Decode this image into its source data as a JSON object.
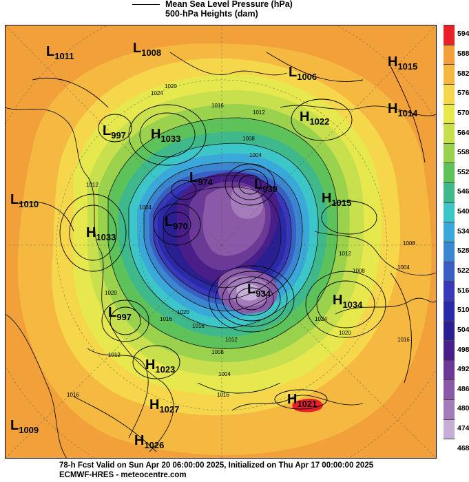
{
  "header": {
    "line1": "Mean Sea Level Pressure (hPa)",
    "line2": "500-hPa Heights (dam)"
  },
  "footer": {
    "line1": "78-h Fcst Valid on Sun Apr 20 06:00:00 2025, Initialized on Thu Apr 17 00:00:00 2025",
    "line2": "ECMWF-HRES - meteocentre.com"
  },
  "colorbar": {
    "labels": [
      "594",
      "588",
      "582",
      "576",
      "570",
      "564",
      "558",
      "552",
      "546",
      "540",
      "534",
      "528",
      "522",
      "516",
      "510",
      "504",
      "498",
      "492",
      "486",
      "480",
      "474",
      "468"
    ],
    "colors": [
      "#e8202a",
      "#f2a13a",
      "#f5b840",
      "#f6d64a",
      "#e6e84e",
      "#c8e04e",
      "#9ad24e",
      "#5dc25a",
      "#3fb98c",
      "#3cc6c8",
      "#3aa8d8",
      "#3a86d0",
      "#3a5fc4",
      "#3838b8",
      "#2a2aa8",
      "#2a1f90",
      "#4a1e88",
      "#6a3a96",
      "#8a5aa8",
      "#a47cbc",
      "#c6aed6",
      "#ffffff"
    ]
  },
  "systems": [
    {
      "type": "L",
      "value": "1011"
    },
    {
      "type": "L",
      "value": "1008"
    },
    {
      "type": "L",
      "value": "1006"
    },
    {
      "type": "H",
      "value": "1015"
    },
    {
      "type": "H",
      "value": "1014"
    },
    {
      "type": "H",
      "value": "1022"
    },
    {
      "type": "L",
      "value": "997"
    },
    {
      "type": "H",
      "value": "1033"
    },
    {
      "type": "L",
      "value": "974"
    },
    {
      "type": "L",
      "value": "939"
    },
    {
      "type": "L",
      "value": "1010"
    },
    {
      "type": "H",
      "value": "1015"
    },
    {
      "type": "H",
      "value": "1033"
    },
    {
      "type": "L",
      "value": "970"
    },
    {
      "type": "L",
      "value": "934"
    },
    {
      "type": "H",
      "value": "1034"
    },
    {
      "type": "L",
      "value": "997"
    },
    {
      "type": "H",
      "value": "1023"
    },
    {
      "type": "H",
      "value": "1027"
    },
    {
      "type": "H",
      "value": "1021"
    },
    {
      "type": "L",
      "value": "1009"
    },
    {
      "type": "H",
      "value": "1026"
    }
  ],
  "isobar_labels": [
    "1024",
    "1020",
    "1016",
    "1012",
    "1008",
    "1004",
    "1012",
    "1024",
    "1020",
    "1016",
    "1012",
    "1008",
    "1004",
    "1020",
    "1016",
    "1012",
    "1008",
    "1008",
    "1004",
    "1024",
    "1020",
    "1016",
    "1012",
    "1016",
    "1016"
  ]
}
